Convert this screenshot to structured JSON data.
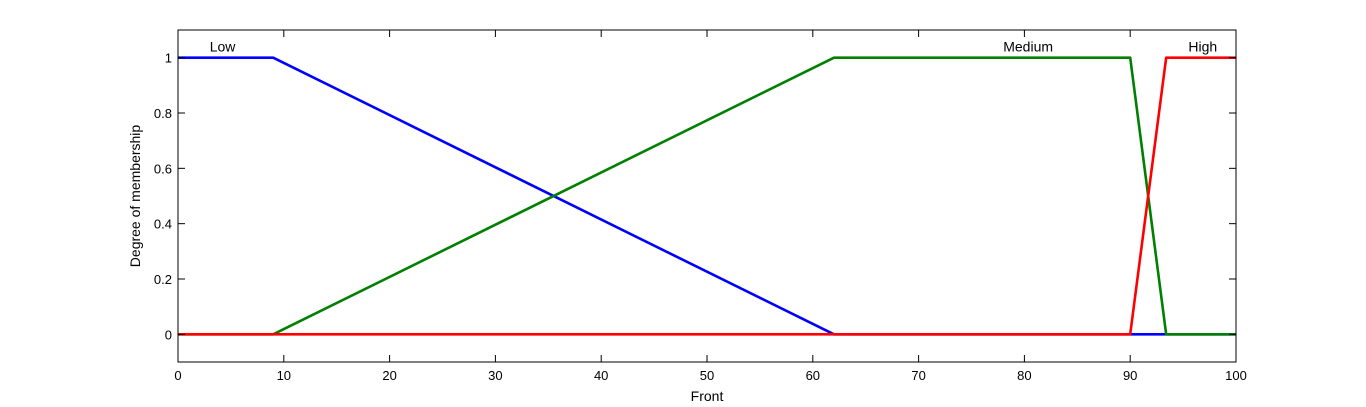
{
  "chart_data": {
    "type": "line",
    "xlabel": "Front",
    "ylabel": "Degree of membership",
    "xlim": [
      0,
      100
    ],
    "ylim": [
      -0.1,
      1.1
    ],
    "x_ticks": [
      0,
      10,
      20,
      30,
      40,
      50,
      60,
      70,
      80,
      90,
      100
    ],
    "y_ticks": [
      0,
      0.2,
      0.4,
      0.6,
      0.8,
      1
    ],
    "x_tick_labels": [
      "0",
      "10",
      "20",
      "30",
      "40",
      "50",
      "60",
      "70",
      "80",
      "90",
      "100"
    ],
    "y_tick_labels": [
      "0",
      "0.2",
      "0.4",
      "0.6",
      "0.8",
      "1"
    ],
    "grid": false,
    "series": [
      {
        "name": "Low",
        "color": "#0000ff",
        "label_at": [
          3,
          1.04
        ],
        "points": [
          [
            0,
            1
          ],
          [
            9,
            1
          ],
          [
            62,
            0
          ],
          [
            100,
            0
          ]
        ]
      },
      {
        "name": "Medium",
        "color": "#008000",
        "label_at": [
          78,
          1.04
        ],
        "points": [
          [
            0,
            0
          ],
          [
            9,
            0
          ],
          [
            62,
            1
          ],
          [
            90,
            1
          ],
          [
            93.4,
            0
          ],
          [
            100,
            0
          ]
        ]
      },
      {
        "name": "High",
        "color": "#ff0000",
        "label_at": [
          95.5,
          1.04
        ],
        "points": [
          [
            0,
            0
          ],
          [
            90,
            0
          ],
          [
            93.4,
            1
          ],
          [
            100,
            1
          ]
        ]
      }
    ]
  }
}
